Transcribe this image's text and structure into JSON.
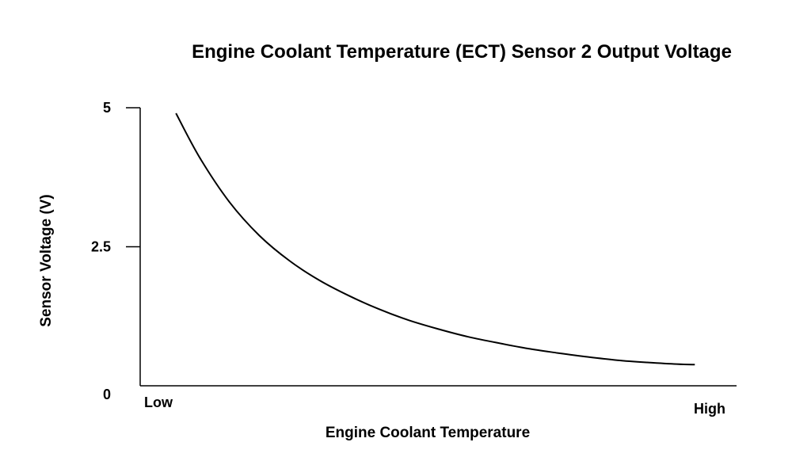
{
  "colors": {
    "background": "#ffffff",
    "line": "#000000",
    "axis": "#000000",
    "text": "#000000"
  },
  "chart_data": {
    "type": "line",
    "title": "Engine Coolant Temperature (ECT) Sensor 2 Output Voltage",
    "xlabel": "Engine Coolant Temperature",
    "ylabel": "Sensor Voltage (V)",
    "x_tick_labels": {
      "min": "Low",
      "max": "High"
    },
    "y_ticks": [
      {
        "value": 0,
        "label": "0"
      },
      {
        "value": 2.5,
        "label": "2.5"
      },
      {
        "value": 5,
        "label": "5"
      }
    ],
    "ylim": [
      0,
      5
    ],
    "xlim": [
      0,
      1
    ],
    "grid": false,
    "legend": "none",
    "series": [
      {
        "x": [
          0.06,
          0.1,
          0.15,
          0.2,
          0.25,
          0.3,
          0.35,
          0.4,
          0.45,
          0.5,
          0.55,
          0.6,
          0.65,
          0.7,
          0.75,
          0.8,
          0.85,
          0.9,
          0.93
        ],
        "y": [
          4.9,
          4.1,
          3.3,
          2.7,
          2.25,
          1.9,
          1.62,
          1.38,
          1.18,
          1.02,
          0.88,
          0.77,
          0.67,
          0.59,
          0.52,
          0.46,
          0.42,
          0.39,
          0.38
        ]
      }
    ]
  }
}
